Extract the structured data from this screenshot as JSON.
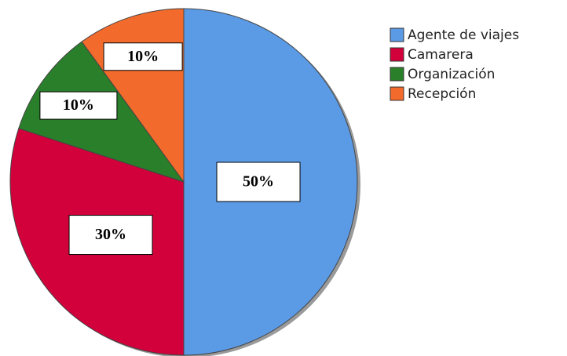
{
  "chart_data": {
    "type": "pie",
    "categories": [
      "Agente de viajes",
      "Camarera",
      "Organización",
      "Recepción"
    ],
    "values": [
      50,
      30,
      10,
      10
    ],
    "value_labels": [
      "50%",
      "30%",
      "10%",
      "10%"
    ],
    "colors": [
      "#5b9be6",
      "#d2003b",
      "#2a802a",
      "#f26b2c"
    ],
    "legend": "right"
  }
}
